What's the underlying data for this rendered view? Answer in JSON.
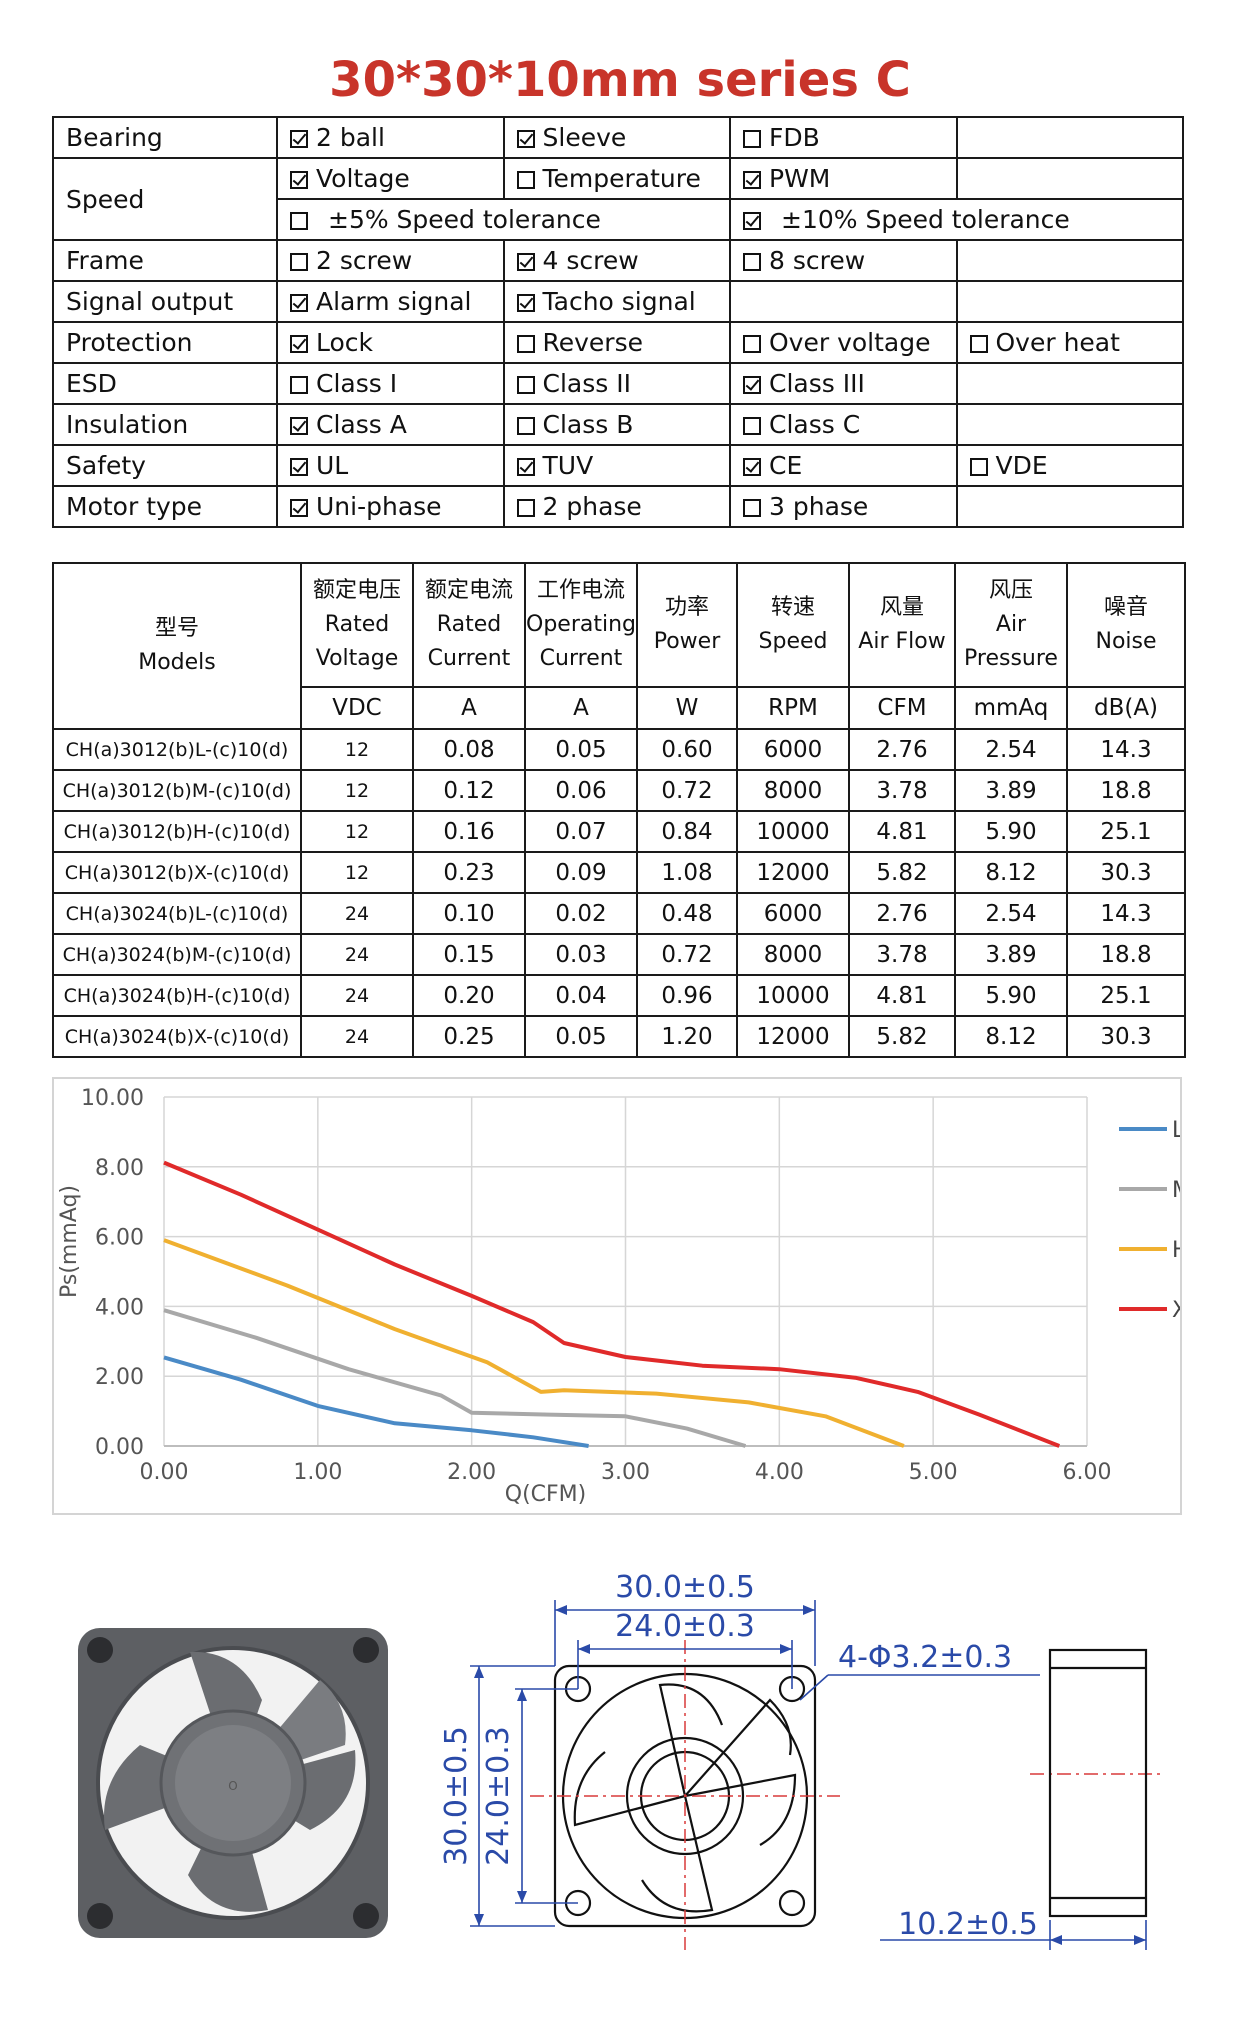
{
  "title": "30*30*10mm series C",
  "features": [
    {
      "label": "Bearing",
      "cells": [
        [
          {
            "text": "2 ball",
            "checked": true
          }
        ],
        [
          {
            "text": "Sleeve",
            "checked": true
          }
        ],
        [
          {
            "text": "FDB",
            "checked": false
          }
        ],
        []
      ]
    },
    {
      "label": "Speed",
      "cells": [
        [
          {
            "text": "Voltage",
            "checked": true
          }
        ],
        [
          {
            "text": "Temperature",
            "checked": false
          }
        ],
        [
          {
            "text": "PWM",
            "checked": true
          }
        ],
        []
      ],
      "sub": [
        {
          "text": "±5% Speed tolerance",
          "checked": false
        },
        {
          "text": "±10% Speed tolerance",
          "checked": true
        }
      ]
    },
    {
      "label": "Frame",
      "cells": [
        [
          {
            "text": "2 screw",
            "checked": false
          }
        ],
        [
          {
            "text": "4 screw",
            "checked": true
          }
        ],
        [
          {
            "text": "8 screw",
            "checked": false
          }
        ],
        []
      ]
    },
    {
      "label": "Signal output",
      "cells": [
        [
          {
            "text": "Alarm signal",
            "checked": true
          }
        ],
        [
          {
            "text": "Tacho signal",
            "checked": true
          }
        ],
        [],
        []
      ]
    },
    {
      "label": "Protection",
      "cells": [
        [
          {
            "text": "Lock",
            "checked": true
          }
        ],
        [
          {
            "text": "Reverse",
            "checked": false
          }
        ],
        [
          {
            "text": "Over voltage",
            "checked": false
          }
        ],
        [
          {
            "text": "Over heat",
            "checked": false
          }
        ]
      ]
    },
    {
      "label": "ESD",
      "cells": [
        [
          {
            "text": "Class I",
            "checked": false
          }
        ],
        [
          {
            "text": "Class II",
            "checked": false
          }
        ],
        [
          {
            "text": "Class III",
            "checked": true
          }
        ],
        []
      ]
    },
    {
      "label": "Insulation",
      "cells": [
        [
          {
            "text": "Class A",
            "checked": true
          }
        ],
        [
          {
            "text": "Class B",
            "checked": false
          }
        ],
        [
          {
            "text": "Class C",
            "checked": false
          }
        ],
        []
      ]
    },
    {
      "label": "Safety",
      "cells": [
        [
          {
            "text": "UL",
            "checked": true
          }
        ],
        [
          {
            "text": "TUV",
            "checked": true
          }
        ],
        [
          {
            "text": "CE",
            "checked": true
          }
        ],
        [
          {
            "text": "VDE",
            "checked": false
          }
        ]
      ]
    },
    {
      "label": "Motor type",
      "cells": [
        [
          {
            "text": "Uni-phase",
            "checked": true
          }
        ],
        [
          {
            "text": "2 phase",
            "checked": false
          }
        ],
        [
          {
            "text": "3 phase",
            "checked": false
          }
        ],
        []
      ]
    }
  ],
  "spec": {
    "models_zh": "型号",
    "models_en": "Models",
    "headers": [
      {
        "zh": "额定电压",
        "en1": "Rated",
        "en2": "Voltage",
        "unit": "VDC"
      },
      {
        "zh": "额定电流",
        "en1": "Rated",
        "en2": "Current",
        "unit": "A"
      },
      {
        "zh": "工作电流",
        "en1": "Operating",
        "en2": "Current",
        "unit": "A"
      },
      {
        "zh": "功率",
        "en1": "Power",
        "en2": "",
        "unit": "W"
      },
      {
        "zh": "转速",
        "en1": "Speed",
        "en2": "",
        "unit": "RPM"
      },
      {
        "zh": "风量",
        "en1": "Air Flow",
        "en2": "",
        "unit": "CFM"
      },
      {
        "zh": "风压",
        "en1": "Air",
        "en2": "Pressure",
        "unit": "mmAq"
      },
      {
        "zh": "噪音",
        "en1": "Noise",
        "en2": "",
        "unit": "dB(A)"
      }
    ],
    "rows": [
      [
        "CH(a)3012(b)L-(c)10(d)",
        "12",
        "0.08",
        "0.05",
        "0.60",
        "6000",
        "2.76",
        "2.54",
        "14.3"
      ],
      [
        "CH(a)3012(b)M-(c)10(d)",
        "12",
        "0.12",
        "0.06",
        "0.72",
        "8000",
        "3.78",
        "3.89",
        "18.8"
      ],
      [
        "CH(a)3012(b)H-(c)10(d)",
        "12",
        "0.16",
        "0.07",
        "0.84",
        "10000",
        "4.81",
        "5.90",
        "25.1"
      ],
      [
        "CH(a)3012(b)X-(c)10(d)",
        "12",
        "0.23",
        "0.09",
        "1.08",
        "12000",
        "5.82",
        "8.12",
        "30.3"
      ],
      [
        "CH(a)3024(b)L-(c)10(d)",
        "24",
        "0.10",
        "0.02",
        "0.48",
        "6000",
        "2.76",
        "2.54",
        "14.3"
      ],
      [
        "CH(a)3024(b)M-(c)10(d)",
        "24",
        "0.15",
        "0.03",
        "0.72",
        "8000",
        "3.78",
        "3.89",
        "18.8"
      ],
      [
        "CH(a)3024(b)H-(c)10(d)",
        "24",
        "0.20",
        "0.04",
        "0.96",
        "10000",
        "4.81",
        "5.90",
        "25.1"
      ],
      [
        "CH(a)3024(b)X-(c)10(d)",
        "24",
        "0.25",
        "0.05",
        "1.20",
        "12000",
        "5.82",
        "8.12",
        "30.3"
      ]
    ]
  },
  "chart_data": {
    "type": "line",
    "title": "",
    "xlabel": "Q(CFM)",
    "ylabel": "Ps(mmAq)",
    "xlim": [
      0,
      6
    ],
    "ylim": [
      0,
      10
    ],
    "x_ticks": [
      "0.00",
      "1.00",
      "2.00",
      "3.00",
      "4.00",
      "5.00",
      "6.00"
    ],
    "y_ticks": [
      "0.00",
      "2.00",
      "4.00",
      "6.00",
      "8.00",
      "10.00"
    ],
    "grid": true,
    "legend": "right",
    "series": [
      {
        "name": "L",
        "color": "#4a8ac6",
        "points": [
          [
            0,
            2.54
          ],
          [
            0.5,
            1.9
          ],
          [
            1.0,
            1.15
          ],
          [
            1.5,
            0.65
          ],
          [
            2.0,
            0.45
          ],
          [
            2.4,
            0.25
          ],
          [
            2.76,
            0
          ]
        ]
      },
      {
        "name": "M",
        "color": "#a8a8a8",
        "points": [
          [
            0,
            3.89
          ],
          [
            0.6,
            3.1
          ],
          [
            1.2,
            2.2
          ],
          [
            1.8,
            1.45
          ],
          [
            2.0,
            0.95
          ],
          [
            2.5,
            0.9
          ],
          [
            3.0,
            0.85
          ],
          [
            3.4,
            0.5
          ],
          [
            3.78,
            0
          ]
        ]
      },
      {
        "name": "H",
        "color": "#f0b030",
        "points": [
          [
            0,
            5.9
          ],
          [
            0.8,
            4.6
          ],
          [
            1.5,
            3.35
          ],
          [
            2.1,
            2.4
          ],
          [
            2.45,
            1.55
          ],
          [
            2.6,
            1.6
          ],
          [
            3.2,
            1.5
          ],
          [
            3.8,
            1.25
          ],
          [
            4.3,
            0.85
          ],
          [
            4.81,
            0
          ]
        ]
      },
      {
        "name": "X",
        "color": "#e02a2a",
        "points": [
          [
            0,
            8.12
          ],
          [
            0.5,
            7.2
          ],
          [
            1.0,
            6.2
          ],
          [
            1.5,
            5.2
          ],
          [
            2.0,
            4.3
          ],
          [
            2.4,
            3.55
          ],
          [
            2.6,
            2.95
          ],
          [
            3.0,
            2.55
          ],
          [
            3.5,
            2.3
          ],
          [
            4.0,
            2.2
          ],
          [
            4.5,
            1.95
          ],
          [
            4.9,
            1.55
          ],
          [
            5.3,
            0.9
          ],
          [
            5.82,
            0
          ]
        ]
      }
    ]
  },
  "drawing": {
    "dim_outer_width": "30.0±0.5",
    "dim_hole_span": "24.0±0.3",
    "dim_holes": "4-Φ3.2±0.3",
    "dim_outer_height": "30.0±0.5",
    "dim_hole_height": "24.0±0.3",
    "dim_thickness": "10.2±0.5",
    "dim_color": "#2a4aa8"
  }
}
